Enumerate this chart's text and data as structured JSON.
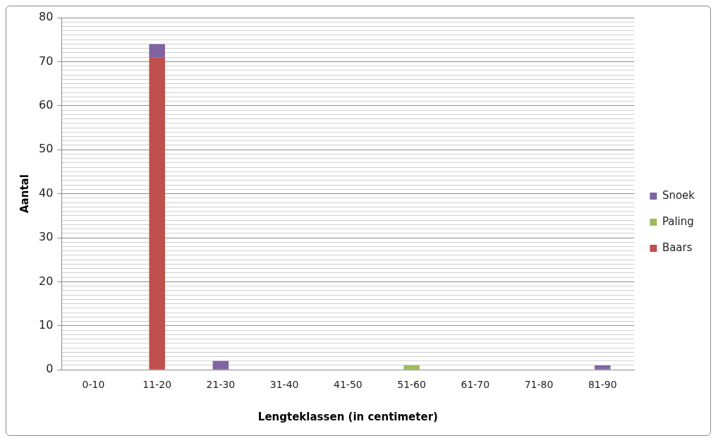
{
  "chart_data": {
    "type": "bar",
    "stacked": true,
    "xlabel": "Lengteklassen (in centimeter)",
    "ylabel": "Aantal",
    "categories": [
      "0-10",
      "11-20",
      "21-30",
      "31-40",
      "41-50",
      "51-60",
      "61-70",
      "71-80",
      "81-90"
    ],
    "series": [
      {
        "name": "Baars",
        "color": "#c0504d",
        "values": [
          0,
          71,
          0,
          0,
          0,
          0,
          0,
          0,
          0
        ]
      },
      {
        "name": "Paling",
        "color": "#9bbb59",
        "values": [
          0,
          0,
          0,
          0,
          0,
          1,
          0,
          0,
          0
        ]
      },
      {
        "name": "Snoek",
        "color": "#8064a2",
        "values": [
          0,
          3,
          2,
          0,
          0,
          0,
          0,
          0,
          1
        ]
      }
    ],
    "ylim": [
      0,
      80
    ],
    "yticks": [
      0,
      {
        "value": 1,
        "label": null
      },
      {
        "value": 2,
        "label": null
      },
      {
        "value": 3,
        "label": null
      },
      {
        "value": 4,
        "label": null
      },
      {
        "value": 5,
        "label": null
      },
      {
        "value": 6,
        "label": null
      },
      {
        "value": 7,
        "label": null
      },
      {
        "value": 8,
        "label": null
      },
      {
        "value": 9,
        "label": null
      },
      10,
      {
        "value": 11,
        "label": null
      },
      {
        "value": 12,
        "label": null
      },
      {
        "value": 13,
        "label": null
      },
      {
        "value": 14,
        "label": null
      },
      {
        "value": 15,
        "label": null
      },
      {
        "value": 16,
        "label": null
      },
      {
        "value": 17,
        "label": null
      },
      {
        "value": 18,
        "label": null
      },
      {
        "value": 19,
        "label": null
      },
      20,
      {
        "value": 21,
        "label": null
      },
      {
        "value": 22,
        "label": null
      },
      {
        "value": 23,
        "label": null
      },
      {
        "value": 24,
        "label": null
      },
      {
        "value": 25,
        "label": null
      },
      {
        "value": 26,
        "label": null
      },
      {
        "value": 27,
        "label": null
      },
      {
        "value": 28,
        "label": null
      },
      {
        "value": 29,
        "label": null
      },
      30,
      {
        "value": 31,
        "label": null
      },
      {
        "value": 32,
        "label": null
      },
      {
        "value": 33,
        "label": null
      },
      {
        "value": 34,
        "label": null
      },
      {
        "value": 35,
        "label": null
      },
      {
        "value": 36,
        "label": null
      },
      {
        "value": 37,
        "label": null
      },
      {
        "value": 38,
        "label": null
      },
      {
        "value": 39,
        "label": null
      },
      40,
      {
        "value": 41,
        "label": null
      },
      {
        "value": 42,
        "label": null
      },
      {
        "value": 43,
        "label": null
      },
      {
        "value": 44,
        "label": null
      },
      {
        "value": 45,
        "label": null
      },
      {
        "value": 46,
        "label": null
      },
      {
        "value": 47,
        "label": null
      },
      {
        "value": 48,
        "label": null
      },
      {
        "value": 49,
        "label": null
      },
      50,
      {
        "value": 51,
        "label": null
      },
      {
        "value": 52,
        "label": null
      },
      {
        "value": 53,
        "label": null
      },
      {
        "value": 54,
        "label": null
      },
      {
        "value": 55,
        "label": null
      },
      {
        "value": 56,
        "label": null
      },
      {
        "value": 57,
        "label": null
      },
      {
        "value": 58,
        "label": null
      },
      {
        "value": 59,
        "label": null
      },
      60,
      {
        "value": 61,
        "label": null
      },
      {
        "value": 62,
        "label": null
      },
      {
        "value": 63,
        "label": null
      },
      {
        "value": 64,
        "label": null
      },
      {
        "value": 65,
        "label": null
      },
      {
        "value": 66,
        "label": null
      },
      {
        "value": 67,
        "label": null
      },
      {
        "value": 68,
        "label": null
      },
      {
        "value": 69,
        "label": null
      },
      70,
      {
        "value": 71,
        "label": null
      },
      {
        "value": 72,
        "label": null
      },
      {
        "value": 73,
        "label": null
      },
      {
        "value": 74,
        "label": null
      },
      {
        "value": 75,
        "label": null
      },
      {
        "value": 76,
        "label": null
      },
      {
        "value": 77,
        "label": null
      },
      {
        "value": 78,
        "label": null
      },
      {
        "value": 79,
        "label": null
      },
      80
    ],
    "grid": "y",
    "legend": "right"
  }
}
